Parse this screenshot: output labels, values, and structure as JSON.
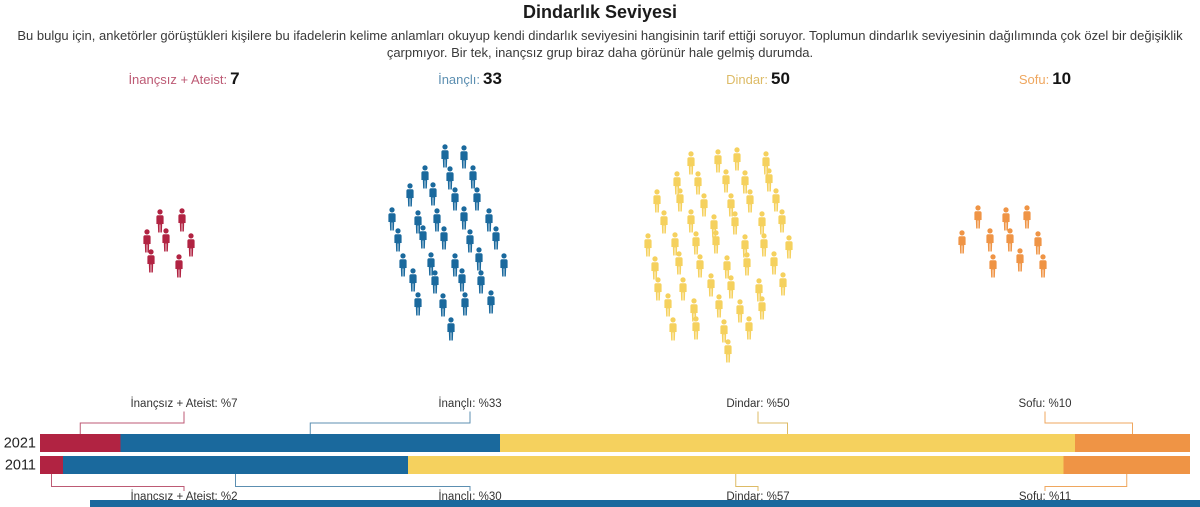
{
  "title": "Dindarlık Seviyesi",
  "description": "Bu bulgu için, anketörler görüştükleri kişilere bu ifadelerin kelime anlamları okuyup kendi dindarlık seviyesini hangisinin tarif ettiği soruyor. Toplumun dindarlık seviyesinin dağılımında çok özel bir değişiklik çarpmıyor. Bir tek, inançsız grup biraz daha görünür hale gelmiş durumda.",
  "chart_data": {
    "type": "pictogram + stacked_bar",
    "categories": [
      "İnançsız + Ateist",
      "İnançlı",
      "Dindar",
      "Sofu"
    ],
    "colors": [
      "#b12342",
      "#1a699d",
      "#f5d15e",
      "#ef9445"
    ],
    "label_colors": [
      "#bd5a74",
      "#5c8fb1",
      "#ddbb66",
      "#efa75f"
    ],
    "header_stats": [
      {
        "label": "İnançsız + Ateist:",
        "value": "7"
      },
      {
        "label": "İnançlı:",
        "value": "33"
      },
      {
        "label": "Dindar:",
        "value": "50"
      },
      {
        "label": "Sofu:",
        "value": "10"
      }
    ],
    "pictogram_counts": [
      7,
      33,
      50,
      10
    ],
    "stacked_bars": {
      "years": [
        "2021",
        "2011"
      ],
      "series": [
        {
          "name": "2021",
          "values": [
            7,
            33,
            50,
            10
          ]
        },
        {
          "name": "2011",
          "values": [
            2,
            30,
            57,
            11
          ]
        }
      ],
      "labels_top": [
        "İnançsız + Ateist: %7",
        "İnançlı: %33",
        "Dindar: %50",
        "Sofu: %10"
      ],
      "labels_bottom": [
        "İnançsız + Ateist: %2",
        "İnançlı: %30",
        "Dindar: %57",
        "Sofu: %11"
      ],
      "xlim": [
        0,
        100
      ],
      "legend": "none",
      "grid": false
    },
    "partial_bottom_bar_color": "#1a699d"
  }
}
